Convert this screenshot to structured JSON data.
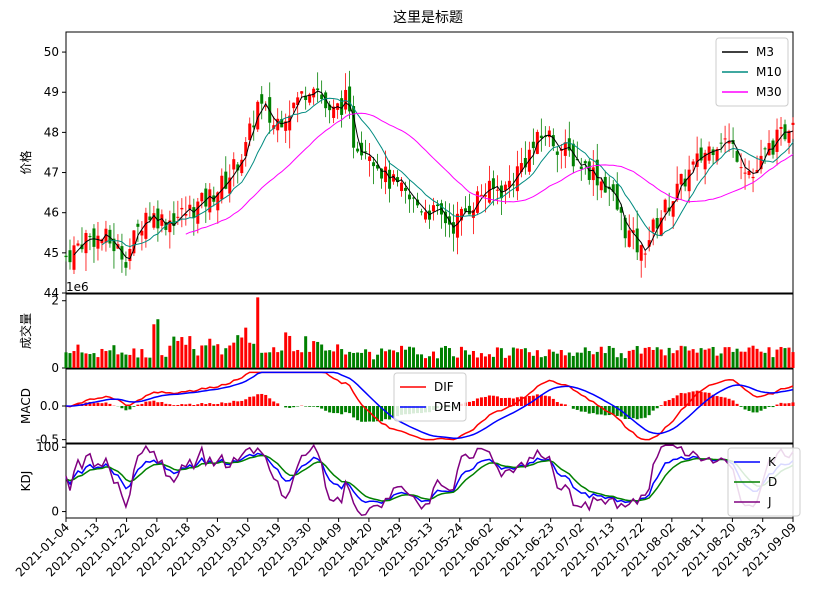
{
  "chart_data": {
    "type": "candlestick",
    "title": "这里是标题",
    "dates": [
      "2021-01-04",
      "2021-01-13",
      "2021-01-22",
      "2021-02-02",
      "2021-02-18",
      "2021-03-01",
      "2021-03-10",
      "2021-03-19",
      "2021-03-30",
      "2021-04-09",
      "2021-04-20",
      "2021-04-29",
      "2021-05-13",
      "2021-05-24",
      "2021-06-02",
      "2021-06-11",
      "2021-06-23",
      "2021-07-02",
      "2021-07-13",
      "2021-07-22",
      "2021-08-02",
      "2021-08-11",
      "2021-08-20",
      "2021-08-31",
      "2021-09-09"
    ],
    "price_panel": {
      "ylabel": "价格",
      "ylim": [
        44,
        50.5
      ],
      "yticks": [
        "44",
        "45",
        "46",
        "47",
        "48",
        "49",
        "50"
      ],
      "legend": [
        "M3",
        "M10",
        "M30"
      ],
      "series_colors": {
        "M3": "#000000",
        "M10": "#008b80",
        "M30": "#ff00ff"
      },
      "close_anchors": [
        [
          0,
          44.9
        ],
        [
          5,
          45.4
        ],
        [
          10,
          45.35
        ],
        [
          15,
          44.9
        ],
        [
          20,
          46.0
        ],
        [
          25,
          45.8
        ],
        [
          30,
          46.0
        ],
        [
          35,
          46.3
        ],
        [
          40,
          46.8
        ],
        [
          45,
          47.6
        ],
        [
          48,
          48.7
        ],
        [
          52,
          48.2
        ],
        [
          58,
          48.8
        ],
        [
          62,
          49.3
        ],
        [
          66,
          48.4
        ],
        [
          70,
          48.8
        ],
        [
          72,
          47.8
        ],
        [
          76,
          47.6
        ],
        [
          80,
          46.9
        ],
        [
          86,
          46.3
        ],
        [
          92,
          46.0
        ],
        [
          97,
          45.7
        ],
        [
          104,
          46.5
        ],
        [
          110,
          46.6
        ],
        [
          116,
          47.5
        ],
        [
          120,
          48.0
        ],
        [
          124,
          47.6
        ],
        [
          128,
          47.3
        ],
        [
          132,
          47.0
        ],
        [
          136,
          46.6
        ],
        [
          140,
          45.6
        ],
        [
          144,
          45.0
        ],
        [
          148,
          45.8
        ],
        [
          152,
          46.4
        ],
        [
          156,
          47.0
        ],
        [
          160,
          47.5
        ],
        [
          164,
          47.9
        ],
        [
          168,
          47.5
        ],
        [
          172,
          46.9
        ],
        [
          176,
          47.6
        ],
        [
          180,
          48.0
        ],
        [
          182,
          48.5
        ]
      ],
      "m30_start_index": 30
    },
    "volume_panel": {
      "ylabel": "成交量",
      "scale_label": "1e6",
      "ylim": [
        0,
        2.2
      ],
      "yticks": [
        "0",
        "2"
      ],
      "peak_volume": 2.1
    },
    "macd_panel": {
      "ylabel": "MACD",
      "ylim": [
        -0.55,
        0.55
      ],
      "yticks": [
        "-0.5",
        "0.0"
      ],
      "legend": [
        "DIF",
        "DEM"
      ],
      "series_colors": {
        "DIF": "#ff0000",
        "DEM": "#0000ff"
      }
    },
    "kdj_panel": {
      "ylabel": "KDJ",
      "ylim": [
        -10,
        105
      ],
      "yticks": [
        "0",
        "100"
      ],
      "legend": [
        "K",
        "D",
        "J"
      ],
      "series_colors": {
        "K": "#0000ff",
        "D": "#008000",
        "J": "#800080"
      }
    },
    "n_points": 183,
    "up_color": "#ff0000",
    "down_color": "#008000",
    "grid": false
  }
}
